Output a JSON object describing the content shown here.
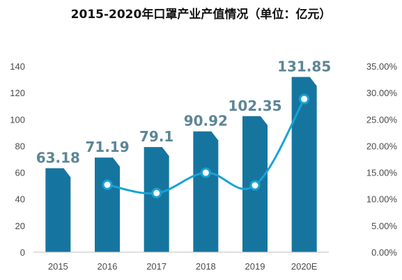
{
  "chart_data": {
    "type": "bar",
    "title": "2015-2020年口罩产业产值情况（单位：亿元）",
    "categories": [
      "2015",
      "2016",
      "2017",
      "2018",
      "2019",
      "2020E"
    ],
    "series": [
      {
        "values": [
          63.18,
          71.19,
          79.1,
          90.92,
          102.35,
          131.85
        ],
        "axis": "left",
        "kind": "bar"
      },
      {
        "values": [
          null,
          12.68,
          11.11,
          14.94,
          12.57,
          28.82
        ],
        "axis": "right",
        "kind": "line",
        "unit": "%"
      }
    ],
    "data_labels": [
      "63.18",
      "71.19",
      "79.1",
      "90.92",
      "102.35",
      "131.85"
    ],
    "y_left": {
      "ticks": [
        "0",
        "20",
        "40",
        "60",
        "80",
        "100",
        "120",
        "140"
      ],
      "ylim": [
        0,
        140
      ]
    },
    "y_right": {
      "ticks": [
        "0.00%",
        "5.00%",
        "10.00%",
        "15.00%",
        "20.00%",
        "25.00%",
        "30.00%",
        "35.00%"
      ],
      "ylim": [
        0,
        35
      ]
    },
    "grid": false,
    "legend": "none",
    "colors": {
      "bar": "#16759F",
      "bar_fold": "#0C4F6B",
      "line": "#1AA2D4",
      "label": "#5D8595",
      "axis": "#BFBFBF"
    }
  }
}
